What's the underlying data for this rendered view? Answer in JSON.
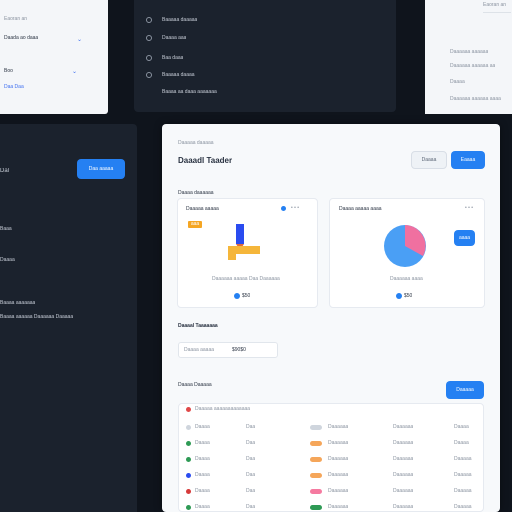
{
  "top_left": {
    "title": "Eaoran an",
    "field1": "Daada ao daaa",
    "field2": "Boo",
    "link": "Daa  Daa"
  },
  "top_center": {
    "items": [
      "Baaaaa daaaaa",
      "Daaaa aaa",
      "Baa daaa",
      "Baaaaa daaaa",
      "Baaaa aa daaa aaaaaaa"
    ]
  },
  "top_right": {
    "title": "Eaoran an",
    "rows": [
      "Daaaaaa aaaaaa",
      "Daaaaaa aaaaaa aa",
      "Daaaa",
      "Daaaaaa aaaaaa aaaa"
    ]
  },
  "left_panel": {
    "title": "Dal",
    "button": "Daa aaaaa",
    "items": [
      "Baaa",
      "Daaaa",
      "Baaaa aaaaaaa",
      "Baaaa aaaaaa Daaaaaa Daaaaa"
    ]
  },
  "main": {
    "breadcrumb": "Daaaaa daaaaa",
    "title": "Daaadl Taader",
    "btn_secondary": "Daaaa",
    "btn_primary": "Eaaaa",
    "section1": "Daaaa daaaaaa",
    "card1": {
      "title": "Daaaaa aaaaa",
      "tag": "aaa",
      "caption": "Daaaaaa aaaaa  Daa  Daaaaaa",
      "value": "$50"
    },
    "card2": {
      "title": "Daaaa aaaaa aaaa",
      "button": "aaaa",
      "caption": "Daaaaaa aaaa",
      "value": "$50"
    },
    "section2": "Daaaal Taaaaaaa",
    "input_label": "Daaaa aaaaa",
    "input_value": "$90$0",
    "section3": "Daaaa Daaaaa",
    "table_btn": "Daaaaa",
    "table_header": "Daaaaa aaaaaaaaaaaaa",
    "rows": [
      {
        "c1": "Daaaa",
        "c2": "Daa",
        "c3": "Daaaaaa",
        "c4": "Daaaaaa",
        "c5": "Daaaa"
      },
      {
        "c1": "Daaaa",
        "c2": "Daa",
        "c3": "Daaaaaa",
        "c4": "Daaaaaa",
        "c5": "Daaaa"
      },
      {
        "c1": "Daaaa",
        "c2": "Daa",
        "c3": "Daaaaaa",
        "c4": "Daaaaaa",
        "c5": "Daaaaa"
      },
      {
        "c1": "Daaaa",
        "c2": "Daa",
        "c3": "Daaaaaa",
        "c4": "Daaaaaa",
        "c5": "Daaaaa"
      },
      {
        "c1": "Daaaa",
        "c2": "Daa",
        "c3": "Daaaaaa",
        "c4": "Daaaaaa",
        "c5": "Daaaaa"
      },
      {
        "c1": "Daaaa",
        "c2": "Daa",
        "c3": "Daaaaaa",
        "c4": "Daaaaaa",
        "c5": "Daaaaa"
      }
    ]
  },
  "colors": {
    "accent": "#2580f2",
    "dark": "#1b222d",
    "pie_blue": "#4a9ff5",
    "pie_pink": "#f070a0"
  }
}
